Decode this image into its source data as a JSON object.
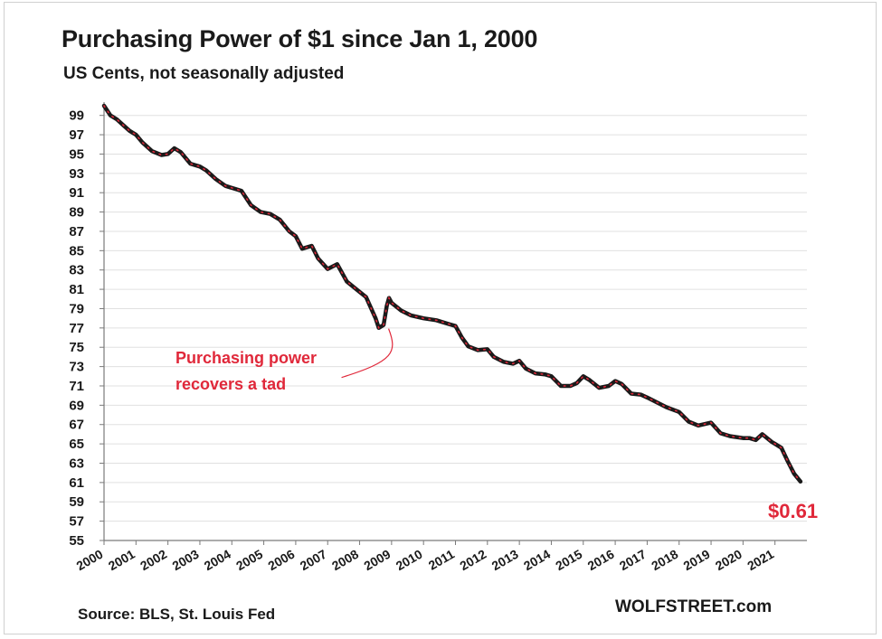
{
  "colors": {
    "line": "#1a1a1a",
    "dots": "#e0283a",
    "accent": "#e0283a",
    "grid": "#e0e0e0"
  },
  "footer": {
    "source": "Source: BLS, St. Louis Fed",
    "brand": "WOLFSTREET.com"
  },
  "chart_data": {
    "type": "line",
    "title": "Purchasing  Power of $1 since Jan 1, 2000",
    "subtitle": "US Cents, not seasonally adjusted",
    "xlabel": "",
    "ylabel": "",
    "xlim": [
      2000,
      2022
    ],
    "ylim": [
      55,
      100
    ],
    "y_ticks": [
      55,
      57,
      59,
      61,
      63,
      65,
      67,
      69,
      71,
      73,
      75,
      77,
      79,
      81,
      83,
      85,
      87,
      89,
      91,
      93,
      95,
      97,
      99
    ],
    "x_ticks": [
      "2000",
      "2001",
      "2002",
      "2003",
      "2004",
      "2005",
      "2006",
      "2007",
      "2008",
      "2009",
      "2010",
      "2011",
      "2012",
      "2013",
      "2014",
      "2015",
      "2016",
      "2017",
      "2018",
      "2019",
      "2020",
      "2021"
    ],
    "grid": true,
    "series": [
      {
        "x": [
          2000.0,
          2000.2,
          2000.4,
          2000.6,
          2000.8,
          2001.0,
          2001.2,
          2001.5,
          2001.8,
          2002.0,
          2002.2,
          2002.4,
          2002.7,
          2003.0,
          2003.2,
          2003.5,
          2003.8,
          2004.0,
          2004.3,
          2004.6,
          2004.9,
          2005.2,
          2005.5,
          2005.8,
          2006.0,
          2006.2,
          2006.5,
          2006.7,
          2007.0,
          2007.3,
          2007.6,
          2007.9,
          2008.2,
          2008.5,
          2008.6,
          2008.75,
          2008.85,
          2008.92,
          2009.0,
          2009.3,
          2009.6,
          2010.0,
          2010.4,
          2010.8,
          2011.0,
          2011.2,
          2011.4,
          2011.7,
          2012.0,
          2012.2,
          2012.5,
          2012.8,
          2013.0,
          2013.2,
          2013.5,
          2013.8,
          2014.0,
          2014.3,
          2014.6,
          2014.8,
          2015.0,
          2015.2,
          2015.5,
          2015.8,
          2016.0,
          2016.2,
          2016.5,
          2016.8,
          2017.0,
          2017.3,
          2017.6,
          2018.0,
          2018.3,
          2018.6,
          2019.0,
          2019.3,
          2019.6,
          2020.0,
          2020.2,
          2020.4,
          2020.6,
          2020.9,
          2021.0,
          2021.2,
          2021.4,
          2021.6,
          2021.8
        ],
        "values": [
          100.0,
          99.0,
          98.6,
          98.0,
          97.4,
          97.0,
          96.2,
          95.3,
          94.9,
          95.0,
          95.6,
          95.2,
          94.0,
          93.7,
          93.3,
          92.4,
          91.7,
          91.5,
          91.2,
          89.7,
          89.0,
          88.8,
          88.2,
          87.0,
          86.5,
          85.2,
          85.5,
          84.2,
          83.1,
          83.6,
          81.8,
          81.0,
          80.2,
          78.0,
          77.0,
          77.3,
          79.3,
          80.1,
          79.6,
          78.8,
          78.3,
          78.0,
          77.8,
          77.4,
          77.2,
          76.0,
          75.1,
          74.7,
          74.8,
          74.0,
          73.5,
          73.3,
          73.6,
          72.8,
          72.3,
          72.2,
          72.0,
          71.0,
          71.0,
          71.3,
          72.0,
          71.6,
          70.8,
          71.0,
          71.5,
          71.2,
          70.2,
          70.1,
          69.8,
          69.3,
          68.8,
          68.3,
          67.3,
          66.9,
          67.2,
          66.1,
          65.8,
          65.6,
          65.6,
          65.4,
          66.0,
          65.2,
          65.0,
          64.6,
          63.2,
          61.9,
          61.1
        ]
      }
    ],
    "annotations": [
      {
        "text_lines": [
          "Purchasing power",
          "recovers a tad"
        ],
        "x": 2008.85,
        "y": 77.3
      },
      {
        "text": "$0.61",
        "x": 2021.8,
        "y": 61.1
      }
    ]
  }
}
